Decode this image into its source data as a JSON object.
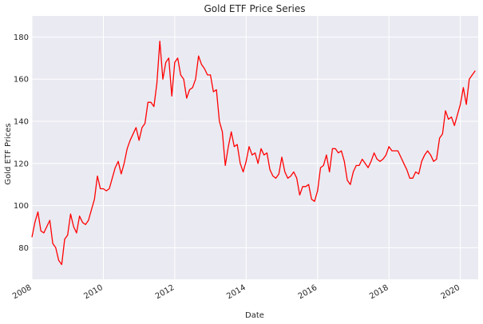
{
  "chart_data": {
    "type": "line",
    "title": "Gold ETF Price Series",
    "xlabel": "Date",
    "ylabel": "Gold ETF Prices",
    "x_ticks": [
      "2008",
      "2010",
      "2012",
      "2014",
      "2016",
      "2018",
      "2020"
    ],
    "y_ticks": [
      80,
      100,
      120,
      140,
      160,
      180
    ],
    "xlim": [
      "2008-01",
      "2020-07"
    ],
    "ylim": [
      65,
      190
    ],
    "grid": true,
    "series": [
      {
        "color": "#ff0000",
        "points": [
          [
            "2008-01",
            85
          ],
          [
            "2008-02",
            92
          ],
          [
            "2008-03",
            97
          ],
          [
            "2008-04",
            88
          ],
          [
            "2008-05",
            87
          ],
          [
            "2008-06",
            90
          ],
          [
            "2008-07",
            93
          ],
          [
            "2008-08",
            82
          ],
          [
            "2008-09",
            80
          ],
          [
            "2008-10",
            74
          ],
          [
            "2008-11",
            72
          ],
          [
            "2008-12",
            84
          ],
          [
            "2009-01",
            86
          ],
          [
            "2009-02",
            96
          ],
          [
            "2009-03",
            90
          ],
          [
            "2009-04",
            87
          ],
          [
            "2009-05",
            95
          ],
          [
            "2009-06",
            92
          ],
          [
            "2009-07",
            91
          ],
          [
            "2009-08",
            93
          ],
          [
            "2009-09",
            98
          ],
          [
            "2009-10",
            103
          ],
          [
            "2009-11",
            114
          ],
          [
            "2009-12",
            108
          ],
          [
            "2010-01",
            108
          ],
          [
            "2010-02",
            107
          ],
          [
            "2010-03",
            108
          ],
          [
            "2010-04",
            113
          ],
          [
            "2010-05",
            118
          ],
          [
            "2010-06",
            121
          ],
          [
            "2010-07",
            115
          ],
          [
            "2010-08",
            120
          ],
          [
            "2010-09",
            127
          ],
          [
            "2010-10",
            131
          ],
          [
            "2010-11",
            134
          ],
          [
            "2010-12",
            137
          ],
          [
            "2011-01",
            131
          ],
          [
            "2011-02",
            137
          ],
          [
            "2011-03",
            139
          ],
          [
            "2011-04",
            149
          ],
          [
            "2011-05",
            149
          ],
          [
            "2011-06",
            147
          ],
          [
            "2011-07",
            158
          ],
          [
            "2011-08",
            178
          ],
          [
            "2011-09",
            160
          ],
          [
            "2011-10",
            168
          ],
          [
            "2011-11",
            170
          ],
          [
            "2011-12",
            152
          ],
          [
            "2012-01",
            168
          ],
          [
            "2012-02",
            170
          ],
          [
            "2012-03",
            162
          ],
          [
            "2012-04",
            160
          ],
          [
            "2012-05",
            151
          ],
          [
            "2012-06",
            155
          ],
          [
            "2012-07",
            156
          ],
          [
            "2012-08",
            160
          ],
          [
            "2012-09",
            171
          ],
          [
            "2012-10",
            167
          ],
          [
            "2012-11",
            165
          ],
          [
            "2012-12",
            162
          ],
          [
            "2013-01",
            162
          ],
          [
            "2013-02",
            154
          ],
          [
            "2013-03",
            155
          ],
          [
            "2013-04",
            140
          ],
          [
            "2013-05",
            135
          ],
          [
            "2013-06",
            119
          ],
          [
            "2013-07",
            128
          ],
          [
            "2013-08",
            135
          ],
          [
            "2013-09",
            128
          ],
          [
            "2013-10",
            129
          ],
          [
            "2013-11",
            120
          ],
          [
            "2013-12",
            116
          ],
          [
            "2014-01",
            121
          ],
          [
            "2014-02",
            128
          ],
          [
            "2014-03",
            124
          ],
          [
            "2014-04",
            125
          ],
          [
            "2014-05",
            120
          ],
          [
            "2014-06",
            127
          ],
          [
            "2014-07",
            124
          ],
          [
            "2014-08",
            125
          ],
          [
            "2014-09",
            117
          ],
          [
            "2014-10",
            114
          ],
          [
            "2014-11",
            113
          ],
          [
            "2014-12",
            115
          ],
          [
            "2015-01",
            123
          ],
          [
            "2015-02",
            116
          ],
          [
            "2015-03",
            113
          ],
          [
            "2015-04",
            114
          ],
          [
            "2015-05",
            116
          ],
          [
            "2015-06",
            113
          ],
          [
            "2015-07",
            105
          ],
          [
            "2015-08",
            109
          ],
          [
            "2015-09",
            109
          ],
          [
            "2015-10",
            110
          ],
          [
            "2015-11",
            103
          ],
          [
            "2015-12",
            102
          ],
          [
            "2016-01",
            107
          ],
          [
            "2016-02",
            118
          ],
          [
            "2016-03",
            119
          ],
          [
            "2016-04",
            124
          ],
          [
            "2016-05",
            116
          ],
          [
            "2016-06",
            127
          ],
          [
            "2016-07",
            127
          ],
          [
            "2016-08",
            125
          ],
          [
            "2016-09",
            126
          ],
          [
            "2016-10",
            121
          ],
          [
            "2016-11",
            112
          ],
          [
            "2016-12",
            110
          ],
          [
            "2017-01",
            116
          ],
          [
            "2017-02",
            119
          ],
          [
            "2017-03",
            119
          ],
          [
            "2017-04",
            122
          ],
          [
            "2017-05",
            120
          ],
          [
            "2017-06",
            118
          ],
          [
            "2017-07",
            121
          ],
          [
            "2017-08",
            125
          ],
          [
            "2017-09",
            122
          ],
          [
            "2017-10",
            121
          ],
          [
            "2017-11",
            122
          ],
          [
            "2017-12",
            124
          ],
          [
            "2018-01",
            128
          ],
          [
            "2018-02",
            126
          ],
          [
            "2018-03",
            126
          ],
          [
            "2018-04",
            126
          ],
          [
            "2018-05",
            123
          ],
          [
            "2018-06",
            120
          ],
          [
            "2018-07",
            117
          ],
          [
            "2018-08",
            113
          ],
          [
            "2018-09",
            113
          ],
          [
            "2018-10",
            116
          ],
          [
            "2018-11",
            115
          ],
          [
            "2018-12",
            121
          ],
          [
            "2019-01",
            124
          ],
          [
            "2019-02",
            126
          ],
          [
            "2019-03",
            124
          ],
          [
            "2019-04",
            121
          ],
          [
            "2019-05",
            122
          ],
          [
            "2019-06",
            132
          ],
          [
            "2019-07",
            134
          ],
          [
            "2019-08",
            145
          ],
          [
            "2019-09",
            141
          ],
          [
            "2019-10",
            142
          ],
          [
            "2019-11",
            138
          ],
          [
            "2019-12",
            143
          ],
          [
            "2020-01",
            148
          ],
          [
            "2020-02",
            156
          ],
          [
            "2020-03",
            148
          ],
          [
            "2020-04",
            160
          ],
          [
            "2020-05",
            162
          ],
          [
            "2020-06",
            164
          ]
        ]
      }
    ]
  }
}
